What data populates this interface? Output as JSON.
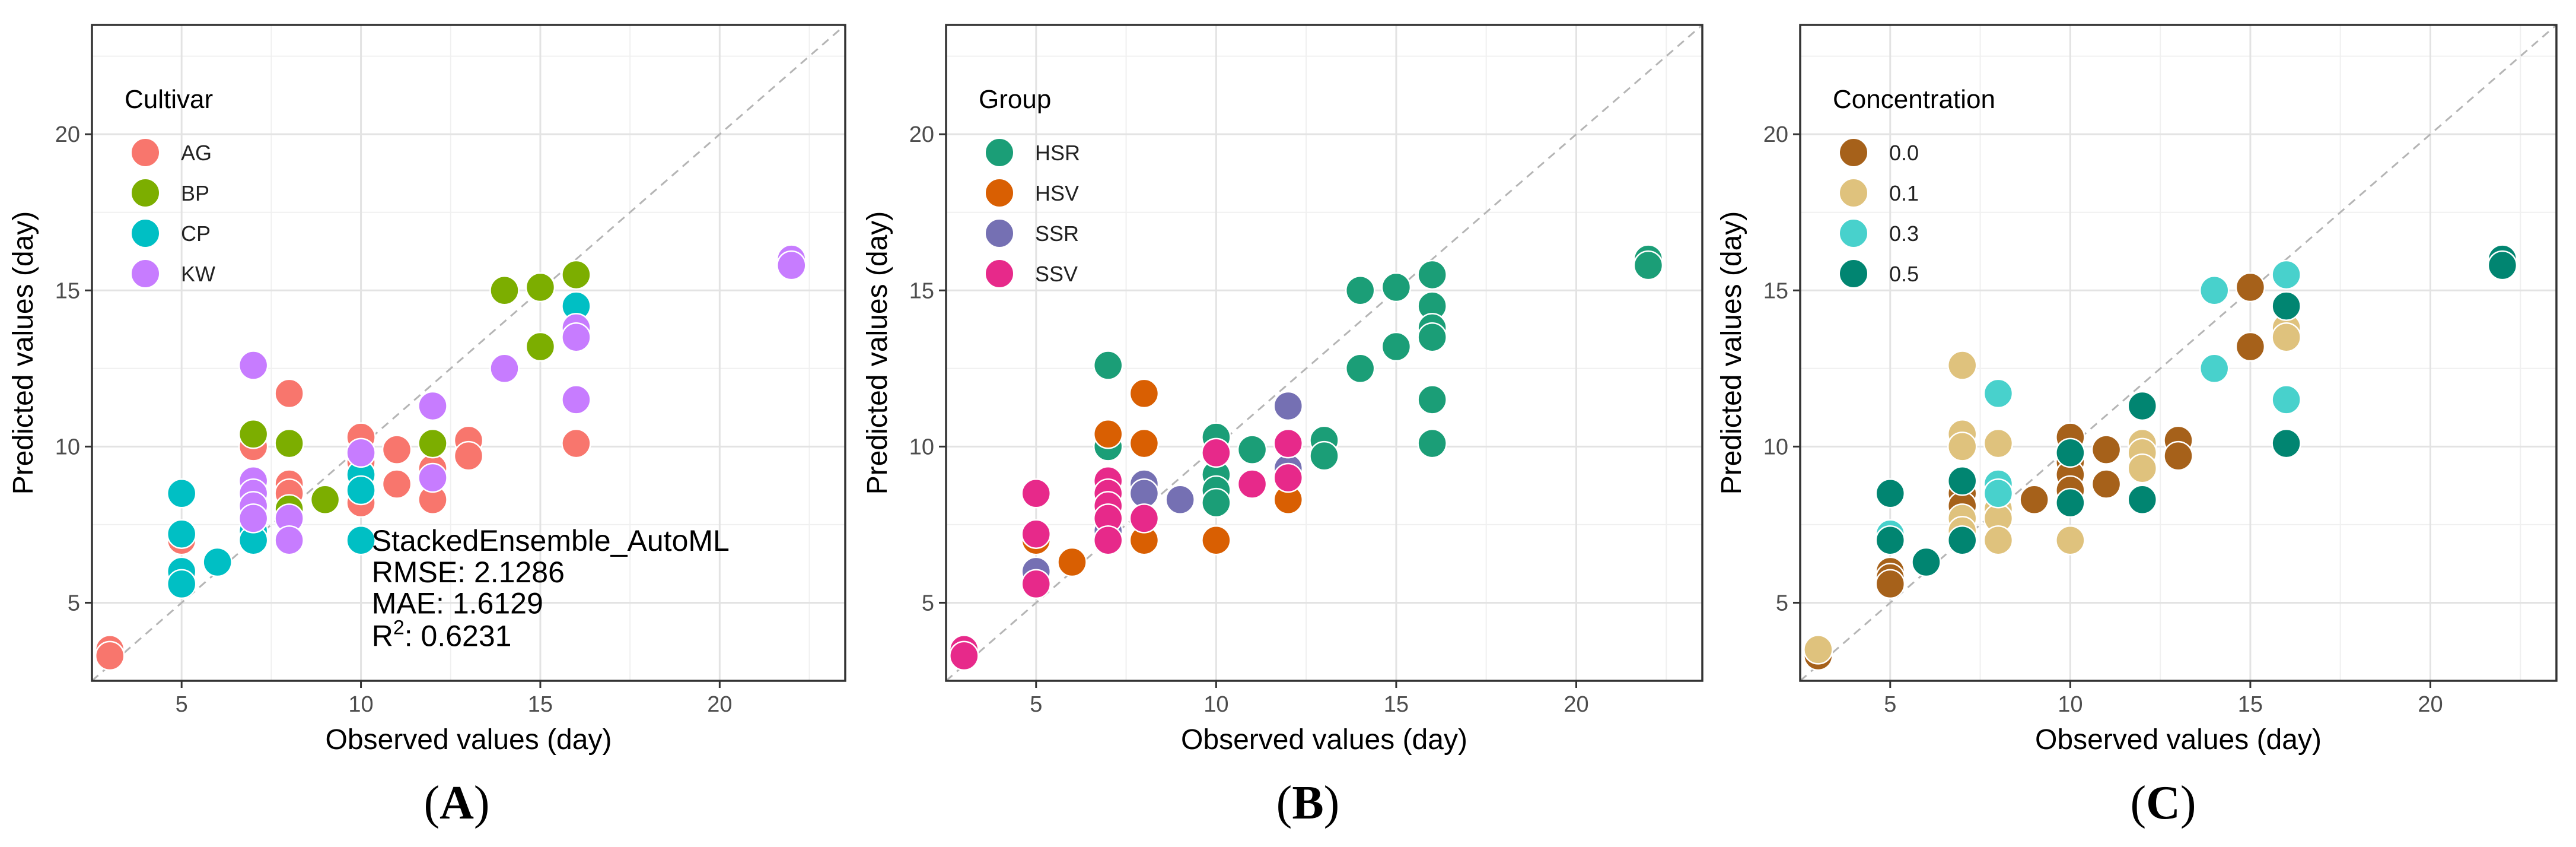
{
  "chart_data": [
    {
      "type": "scatter",
      "panel": "A",
      "xlabel": "Observed values (day)",
      "ylabel": "Predicted values (day)",
      "xlim": [
        2.5,
        23.5
      ],
      "ylim": [
        2.5,
        23.5
      ],
      "xticks": [
        5,
        10,
        15,
        20
      ],
      "yticks": [
        5,
        10,
        15,
        20
      ],
      "grid": true,
      "reference_line": "y = x",
      "legend": {
        "title": "Cultivar",
        "position": "top-left",
        "entries": [
          {
            "label": "AG",
            "color": "#F8766D"
          },
          {
            "label": "BP",
            "color": "#7CAE00"
          },
          {
            "label": "CP",
            "color": "#00BFC4"
          },
          {
            "label": "KW",
            "color": "#C77CFF"
          }
        ]
      },
      "annotation": {
        "model": "StackedEnsemble_AutoML",
        "rmse": "RMSE: 2.1286",
        "mae": "MAE: 1.6129",
        "r2_label": "R",
        "r2_sup": "2",
        "r2_value": ": 0.6231"
      },
      "series": [
        {
          "name": "AG",
          "color": "#F8766D",
          "points": [
            [
              3,
              3.5
            ],
            [
              3,
              3.3
            ],
            [
              5,
              7.0
            ],
            [
              7,
              10.0
            ],
            [
              8,
              11.7
            ],
            [
              8,
              8.8
            ],
            [
              8,
              8.5
            ],
            [
              10,
              10.3
            ],
            [
              10,
              9.5
            ],
            [
              10,
              8.2
            ],
            [
              11,
              9.9
            ],
            [
              11,
              8.8
            ],
            [
              12,
              9.3
            ],
            [
              12,
              8.3
            ],
            [
              13,
              10.2
            ],
            [
              13,
              9.7
            ],
            [
              16,
              10.1
            ]
          ]
        },
        {
          "name": "BP",
          "color": "#7CAE00",
          "points": [
            [
              7,
              10.4
            ],
            [
              8,
              10.1
            ],
            [
              8,
              8.0
            ],
            [
              9,
              8.3
            ],
            [
              12,
              10.1
            ],
            [
              14,
              15.0
            ],
            [
              15,
              15.1
            ],
            [
              15,
              13.2
            ],
            [
              16,
              15.5
            ]
          ]
        },
        {
          "name": "CP",
          "color": "#00BFC4",
          "points": [
            [
              5,
              8.5
            ],
            [
              5,
              7.2
            ],
            [
              5,
              6.0
            ],
            [
              5,
              5.6
            ],
            [
              6,
              6.3
            ],
            [
              7,
              7.3
            ],
            [
              7,
              7.0
            ],
            [
              10,
              9.1
            ],
            [
              10,
              8.6
            ],
            [
              10,
              7.0
            ],
            [
              16,
              14.5
            ]
          ]
        },
        {
          "name": "KW",
          "color": "#C77CFF",
          "points": [
            [
              7,
              12.6
            ],
            [
              7,
              8.9
            ],
            [
              7,
              8.5
            ],
            [
              7,
              8.1
            ],
            [
              7,
              7.7
            ],
            [
              8,
              7.7
            ],
            [
              8,
              7.0
            ],
            [
              10,
              9.8
            ],
            [
              12,
              11.3
            ],
            [
              12,
              9.0
            ],
            [
              14,
              12.5
            ],
            [
              16,
              13.8
            ],
            [
              16,
              13.5
            ],
            [
              16,
              11.5
            ],
            [
              22,
              16.0
            ],
            [
              22,
              15.8
            ]
          ]
        }
      ]
    },
    {
      "type": "scatter",
      "panel": "B",
      "xlabel": "Observed values (day)",
      "ylabel": "Predicted values (day)",
      "xlim": [
        2.5,
        23.5
      ],
      "ylim": [
        2.5,
        23.5
      ],
      "xticks": [
        5,
        10,
        15,
        20
      ],
      "yticks": [
        5,
        10,
        15,
        20
      ],
      "grid": true,
      "reference_line": "y = x",
      "legend": {
        "title": "Group",
        "position": "top-left",
        "entries": [
          {
            "label": "HSR",
            "color": "#1B9E77"
          },
          {
            "label": "HSV",
            "color": "#D95F02"
          },
          {
            "label": "SSR",
            "color": "#7570B3"
          },
          {
            "label": "SSV",
            "color": "#E7298A"
          }
        ]
      },
      "series": [
        {
          "name": "HSR",
          "color": "#1B9E77",
          "points": [
            [
              5,
              5.8
            ],
            [
              7,
              12.6
            ],
            [
              7,
              10.0
            ],
            [
              10,
              10.3
            ],
            [
              10,
              9.1
            ],
            [
              10,
              8.6
            ],
            [
              10,
              8.2
            ],
            [
              11,
              9.9
            ],
            [
              13,
              10.2
            ],
            [
              13,
              9.7
            ],
            [
              14,
              15.0
            ],
            [
              14,
              12.5
            ],
            [
              15,
              15.1
            ],
            [
              15,
              13.2
            ],
            [
              16,
              15.5
            ],
            [
              16,
              14.5
            ],
            [
              16,
              13.8
            ],
            [
              16,
              13.5
            ],
            [
              16,
              11.5
            ],
            [
              16,
              10.1
            ],
            [
              22,
              16.0
            ],
            [
              22,
              15.8
            ]
          ]
        },
        {
          "name": "HSV",
          "color": "#D95F02",
          "points": [
            [
              5,
              7.0
            ],
            [
              6,
              6.3
            ],
            [
              7,
              10.4
            ],
            [
              8,
              11.7
            ],
            [
              8,
              10.1
            ],
            [
              8,
              7.0
            ],
            [
              10,
              7.0
            ],
            [
              12,
              8.3
            ]
          ]
        },
        {
          "name": "SSR",
          "color": "#7570B3",
          "points": [
            [
              5,
              6.0
            ],
            [
              7,
              7.3
            ],
            [
              8,
              8.8
            ],
            [
              8,
              8.5
            ],
            [
              9,
              8.3
            ],
            [
              12,
              11.3
            ],
            [
              12,
              9.3
            ]
          ]
        },
        {
          "name": "SSV",
          "color": "#E7298A",
          "points": [
            [
              3,
              3.5
            ],
            [
              3,
              3.3
            ],
            [
              5,
              8.5
            ],
            [
              5,
              7.2
            ],
            [
              5,
              5.6
            ],
            [
              7,
              8.9
            ],
            [
              7,
              8.5
            ],
            [
              7,
              8.1
            ],
            [
              7,
              7.7
            ],
            [
              7,
              7.0
            ],
            [
              8,
              7.7
            ],
            [
              10,
              9.8
            ],
            [
              11,
              8.8
            ],
            [
              12,
              10.1
            ],
            [
              12,
              9.0
            ]
          ]
        }
      ]
    },
    {
      "type": "scatter",
      "panel": "C",
      "xlabel": "Observed values (day)",
      "ylabel": "Predicted values (day)",
      "xlim": [
        2.5,
        23.5
      ],
      "ylim": [
        2.5,
        23.5
      ],
      "xticks": [
        5,
        10,
        15,
        20
      ],
      "yticks": [
        5,
        10,
        15,
        20
      ],
      "grid": true,
      "reference_line": "y = x",
      "legend": {
        "title": "Concentration",
        "position": "top-left",
        "entries": [
          {
            "label": "0.0",
            "color": "#A6611A"
          },
          {
            "label": "0.1",
            "color": "#DFC27D"
          },
          {
            "label": "0.3",
            "color": "#48D1CC"
          },
          {
            "label": "0.5",
            "color": "#018571"
          }
        ]
      },
      "series": [
        {
          "name": "0.0",
          "color": "#A6611A",
          "points": [
            [
              3,
              3.3
            ],
            [
              5,
              6.0
            ],
            [
              5,
              5.8
            ],
            [
              5,
              5.6
            ],
            [
              7,
              8.5
            ],
            [
              7,
              8.1
            ],
            [
              9,
              8.3
            ],
            [
              10,
              10.3
            ],
            [
              10,
              9.5
            ],
            [
              10,
              9.1
            ],
            [
              10,
              8.6
            ],
            [
              11,
              9.9
            ],
            [
              11,
              8.8
            ],
            [
              13,
              10.2
            ],
            [
              13,
              9.7
            ],
            [
              15,
              15.1
            ],
            [
              15,
              13.2
            ]
          ]
        },
        {
          "name": "0.1",
          "color": "#DFC27D",
          "points": [
            [
              3,
              3.5
            ],
            [
              7,
              12.6
            ],
            [
              7,
              10.4
            ],
            [
              7,
              10.0
            ],
            [
              7,
              7.7
            ],
            [
              7,
              7.3
            ],
            [
              8,
              10.1
            ],
            [
              8,
              8.0
            ],
            [
              8,
              7.7
            ],
            [
              8,
              7.0
            ],
            [
              10,
              7.0
            ],
            [
              12,
              10.1
            ],
            [
              12,
              9.8
            ],
            [
              12,
              9.3
            ],
            [
              16,
              13.8
            ],
            [
              16,
              13.5
            ]
          ]
        },
        {
          "name": "0.3",
          "color": "#48D1CC",
          "points": [
            [
              5,
              7.2
            ],
            [
              8,
              11.7
            ],
            [
              8,
              8.8
            ],
            [
              8,
              8.5
            ],
            [
              14,
              15.0
            ],
            [
              14,
              12.5
            ],
            [
              16,
              15.5
            ],
            [
              16,
              11.5
            ]
          ]
        },
        {
          "name": "0.5",
          "color": "#018571",
          "points": [
            [
              5,
              8.5
            ],
            [
              5,
              7.0
            ],
            [
              6,
              6.3
            ],
            [
              7,
              8.9
            ],
            [
              7,
              7.0
            ],
            [
              10,
              9.8
            ],
            [
              10,
              8.2
            ],
            [
              12,
              11.3
            ],
            [
              12,
              8.3
            ],
            [
              16,
              14.5
            ],
            [
              16,
              10.1
            ],
            [
              22,
              16.0
            ],
            [
              22,
              15.8
            ]
          ]
        }
      ]
    }
  ],
  "panel_labels": [
    "A",
    "B",
    "C"
  ]
}
